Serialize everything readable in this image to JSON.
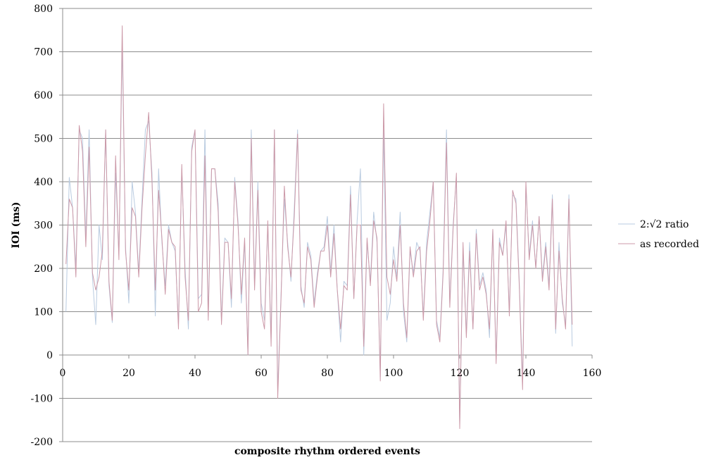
{
  "chart_data": {
    "type": "line",
    "title": "",
    "xlabel": "composite rhythm ordered events",
    "ylabel": "IOI (ms)",
    "xlim": [
      0,
      160
    ],
    "ylim": [
      -200,
      800
    ],
    "xticks": [
      0,
      20,
      40,
      60,
      80,
      100,
      120,
      140,
      160
    ],
    "yticks": [
      -200,
      -100,
      0,
      100,
      200,
      300,
      400,
      500,
      600,
      700,
      800
    ],
    "grid": "horizontal",
    "legend_position": "right",
    "series": [
      {
        "name": "2:√2 ratio",
        "color": "#b9cbe0",
        "x": [
          1,
          2,
          3,
          4,
          5,
          6,
          7,
          8,
          9,
          10,
          11,
          12,
          13,
          14,
          15,
          16,
          17,
          18,
          19,
          20,
          21,
          22,
          23,
          24,
          25,
          26,
          27,
          28,
          29,
          30,
          31,
          32,
          33,
          34,
          35,
          36,
          37,
          38,
          39,
          40,
          41,
          42,
          43,
          44,
          45,
          46,
          47,
          48,
          49,
          50,
          51,
          52,
          53,
          54,
          55,
          56,
          57,
          58,
          59,
          60,
          61,
          62,
          63,
          64,
          65,
          66,
          67,
          68,
          69,
          70,
          71,
          72,
          73,
          74,
          75,
          76,
          77,
          78,
          79,
          80,
          81,
          82,
          83,
          84,
          85,
          86,
          87,
          88,
          89,
          90,
          91,
          92,
          93,
          94,
          95,
          96,
          97,
          98,
          99,
          100,
          101,
          102,
          103,
          104,
          105,
          106,
          107,
          108,
          109,
          110,
          111,
          112,
          113,
          114,
          115,
          116,
          117,
          118,
          119,
          120,
          121,
          122,
          123,
          124,
          125,
          126,
          127,
          128,
          129,
          130,
          131,
          132,
          133,
          134,
          135,
          136,
          137,
          138,
          139,
          140,
          141,
          142,
          143,
          144,
          145,
          146,
          147,
          148,
          149,
          150,
          151,
          152,
          153,
          154
        ],
        "y": [
          100,
          410,
          340,
          200,
          520,
          500,
          270,
          520,
          180,
          70,
          300,
          220,
          520,
          160,
          75,
          420,
          230,
          720,
          250,
          120,
          400,
          330,
          190,
          360,
          520,
          540,
          420,
          90,
          430,
          260,
          160,
          300,
          260,
          240,
          70,
          430,
          200,
          60,
          480,
          520,
          130,
          140,
          520,
          90,
          430,
          430,
          350,
          80,
          270,
          260,
          110,
          410,
          310,
          120,
          260,
          0,
          520,
          160,
          400,
          120,
          80,
          300,
          40,
          520,
          -80,
          140,
          360,
          260,
          170,
          340,
          520,
          160,
          110,
          260,
          230,
          120,
          190,
          240,
          250,
          320,
          190,
          300,
          150,
          30,
          170,
          160,
          390,
          130,
          310,
          430,
          0,
          260,
          170,
          330,
          260,
          -50,
          520,
          80,
          120,
          250,
          180,
          330,
          100,
          30,
          240,
          190,
          260,
          240,
          90,
          260,
          330,
          400,
          80,
          40,
          200,
          520,
          120,
          300,
          410,
          -160,
          240,
          50,
          260,
          60,
          290,
          160,
          190,
          150,
          40,
          290,
          -10,
          270,
          230,
          300,
          100,
          370,
          360,
          170,
          -60,
          390,
          230,
          310,
          200,
          320,
          180,
          260,
          160,
          370,
          50,
          260,
          120,
          70,
          370,
          20
        ]
      },
      {
        "name": "as recorded",
        "color": "#cc99a8",
        "x": [
          1,
          2,
          3,
          4,
          5,
          6,
          7,
          8,
          9,
          10,
          11,
          12,
          13,
          14,
          15,
          16,
          17,
          18,
          19,
          20,
          21,
          22,
          23,
          24,
          25,
          26,
          27,
          28,
          29,
          30,
          31,
          32,
          33,
          34,
          35,
          36,
          37,
          38,
          39,
          40,
          41,
          42,
          43,
          44,
          45,
          46,
          47,
          48,
          49,
          50,
          51,
          52,
          53,
          54,
          55,
          56,
          57,
          58,
          59,
          60,
          61,
          62,
          63,
          64,
          65,
          66,
          67,
          68,
          69,
          70,
          71,
          72,
          73,
          74,
          75,
          76,
          77,
          78,
          79,
          80,
          81,
          82,
          83,
          84,
          85,
          86,
          87,
          88,
          89,
          90,
          91,
          92,
          93,
          94,
          95,
          96,
          97,
          98,
          99,
          100,
          101,
          102,
          103,
          104,
          105,
          106,
          107,
          108,
          109,
          110,
          111,
          112,
          113,
          114,
          115,
          116,
          117,
          118,
          119,
          120,
          121,
          122,
          123,
          124,
          125,
          126,
          127,
          128,
          129,
          130,
          131,
          132,
          133,
          134,
          135,
          136,
          137,
          138,
          139,
          140,
          141,
          142,
          143,
          144,
          145,
          146,
          147,
          148,
          149,
          150,
          151,
          152,
          153,
          154
        ],
        "y": [
          210,
          360,
          340,
          180,
          530,
          470,
          250,
          480,
          190,
          150,
          180,
          240,
          520,
          170,
          80,
          460,
          220,
          760,
          240,
          150,
          340,
          320,
          180,
          340,
          460,
          560,
          400,
          150,
          380,
          270,
          140,
          290,
          260,
          250,
          60,
          440,
          180,
          80,
          470,
          520,
          100,
          120,
          460,
          80,
          430,
          430,
          330,
          70,
          260,
          260,
          130,
          400,
          300,
          140,
          270,
          0,
          500,
          150,
          380,
          100,
          60,
          310,
          20,
          520,
          -100,
          130,
          390,
          250,
          180,
          320,
          510,
          150,
          120,
          250,
          220,
          110,
          180,
          240,
          240,
          300,
          180,
          280,
          150,
          60,
          160,
          150,
          370,
          130,
          300,
          300,
          20,
          270,
          160,
          310,
          270,
          -60,
          580,
          180,
          140,
          220,
          170,
          300,
          120,
          40,
          250,
          180,
          240,
          250,
          80,
          240,
          310,
          400,
          70,
          30,
          190,
          490,
          110,
          290,
          420,
          -170,
          260,
          40,
          240,
          60,
          280,
          150,
          180,
          140,
          60,
          290,
          -20,
          260,
          230,
          310,
          90,
          380,
          350,
          160,
          -80,
          400,
          220,
          300,
          200,
          320,
          170,
          250,
          150,
          360,
          60,
          240,
          130,
          60,
          360,
          70
        ]
      }
    ]
  }
}
